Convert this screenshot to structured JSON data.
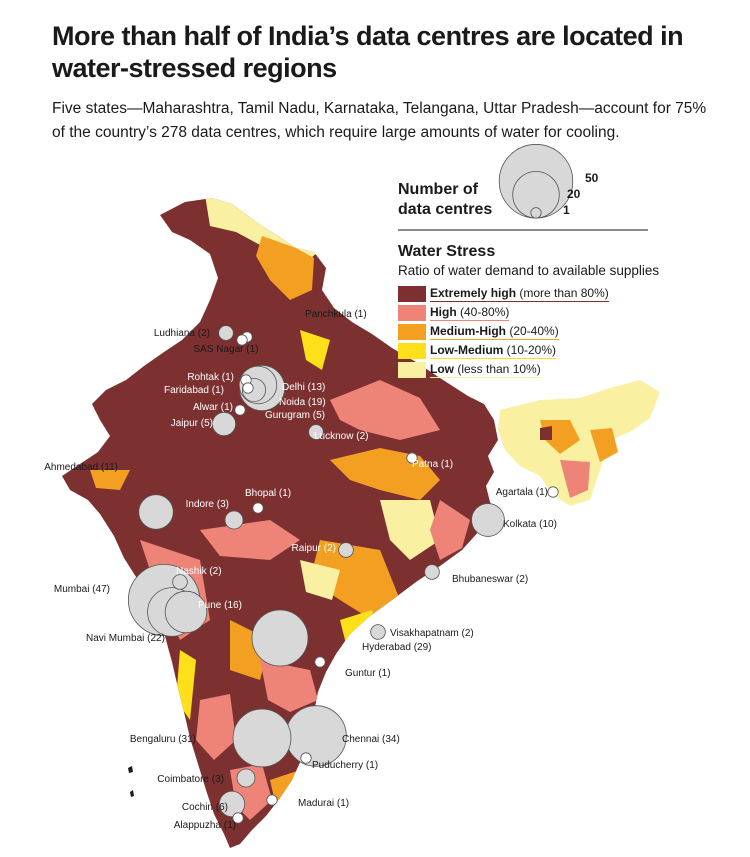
{
  "title": "More than half of India’s data centres are located in water-stressed regions",
  "subtitle": "Five states—Maharashtra, Tamil Nadu, Karnataka, Telangana, Uttar Pradesh—account for 75% of the country’s 278 data centres, which require large amounts of water for cooling.",
  "size_legend": {
    "title_line1": "Number of",
    "title_line2": "data centres",
    "values": [
      50,
      20,
      1
    ]
  },
  "water_stress": {
    "title": "Water Stress",
    "subtitle": "Ratio of water demand to available supplies",
    "categories": [
      {
        "label": "Extremely high",
        "range": " (more than 80%)",
        "color": "#7d3030"
      },
      {
        "label": "High",
        "range": " (40-80%)",
        "color": "#ee8478"
      },
      {
        "label": "Medium-High",
        "range": " (20-40%)",
        "color": "#f3a022"
      },
      {
        "label": "Low-Medium",
        "range": " (10-20%)",
        "color": "#fde01a"
      },
      {
        "label": "Low",
        "range": " (less than 10%)",
        "color": "#faf0a2"
      }
    ]
  },
  "cities": [
    {
      "name": "Panchkula",
      "count": 1,
      "text": "Panchkula (1)"
    },
    {
      "name": "Ludhiana",
      "count": 2,
      "text": "Ludhiana (2)"
    },
    {
      "name": "SAS Nagar",
      "count": 1,
      "text": "SAS Nagar (1)"
    },
    {
      "name": "Rohtak",
      "count": 1,
      "text": "Rohtak (1)"
    },
    {
      "name": "Faridabad",
      "count": 1,
      "text": "Faridabad (1)"
    },
    {
      "name": "Delhi",
      "count": 13,
      "text": "Delhi (13)"
    },
    {
      "name": "Noida",
      "count": 19,
      "text": "Noida (19)"
    },
    {
      "name": "Gurugram",
      "count": 5,
      "text": "Gurugram (5)"
    },
    {
      "name": "Alwar",
      "count": 1,
      "text": "Alwar (1)"
    },
    {
      "name": "Jaipur",
      "count": 5,
      "text": "Jaipur (5)"
    },
    {
      "name": "Lucknow",
      "count": 2,
      "text": "Lucknow (2)"
    },
    {
      "name": "Patna",
      "count": 1,
      "text": "Patna (1)"
    },
    {
      "name": "Agartala",
      "count": 1,
      "text": "Agartala (1)"
    },
    {
      "name": "Ahmedabad",
      "count": 11,
      "text": "Ahmedabad (11)"
    },
    {
      "name": "Bhopal",
      "count": 1,
      "text": "Bhopal (1)"
    },
    {
      "name": "Indore",
      "count": 3,
      "text": "Indore (3)"
    },
    {
      "name": "Kolkata",
      "count": 10,
      "text": "Kolkata (10)"
    },
    {
      "name": "Raipur",
      "count": 2,
      "text": "Raipur (2)"
    },
    {
      "name": "Nashik",
      "count": 2,
      "text": "Nashik (2)"
    },
    {
      "name": "Bhubaneswar",
      "count": 2,
      "text": "Bhubaneswar (2)"
    },
    {
      "name": "Mumbai",
      "count": 47,
      "text": "Mumbai (47)"
    },
    {
      "name": "Pune",
      "count": 16,
      "text": "Pune (16)"
    },
    {
      "name": "Navi Mumbai",
      "count": 22,
      "text": "Navi Mumbai (22)"
    },
    {
      "name": "Visakhapatnam",
      "count": 2,
      "text": "Visakhapatnam (2)"
    },
    {
      "name": "Hyderabad",
      "count": 29,
      "text": "Hyderabad (29)"
    },
    {
      "name": "Guntur",
      "count": 1,
      "text": "Guntur (1)"
    },
    {
      "name": "Bengaluru",
      "count": 31,
      "text": "Bengaluru (31)"
    },
    {
      "name": "Chennai",
      "count": 34,
      "text": "Chennai (34)"
    },
    {
      "name": "Puducherry",
      "count": 1,
      "text": "Puducherry (1)"
    },
    {
      "name": "Coimbatore",
      "count": 3,
      "text": "Coimbatore (3)"
    },
    {
      "name": "Cochin",
      "count": 6,
      "text": "Cochin (6)"
    },
    {
      "name": "Madurai",
      "count": 1,
      "text": "Madurai (1)"
    },
    {
      "name": "Alappuzha",
      "count": 1,
      "text": "Alappuzha (1)"
    }
  ]
}
